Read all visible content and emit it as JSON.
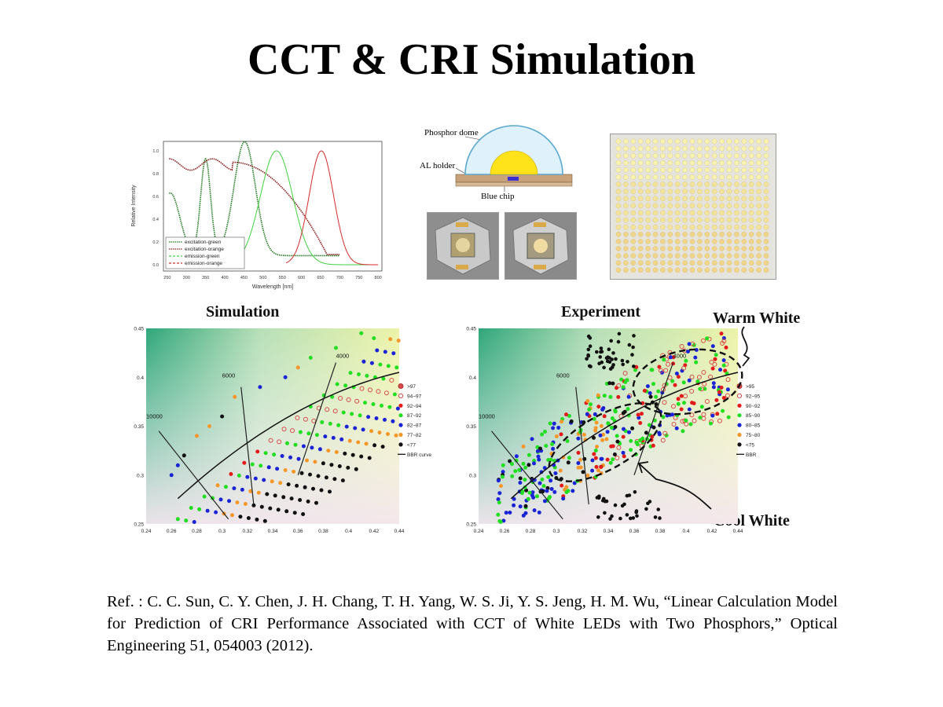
{
  "title": "CCT & CRI Simulation",
  "reference": "Ref. : C. C. Sun, C. Y. Chen, J. H. Chang, T. H. Yang, W. S. Ji, Y. S. Jeng, H. M. Wu, “Linear Calculation Model for Prediction of CRI Performance Associated with CCT of White LEDs with Two Phosphors,” Optical Engineering 51, 054003 (2012).",
  "spectrum": {
    "ylabel": "Relative Intensity",
    "xlabel": "Wavelength [nm]",
    "xticks": [
      "250",
      "300",
      "350",
      "400",
      "450",
      "500",
      "550",
      "600",
      "650",
      "700",
      "750",
      "800"
    ],
    "yticks": [
      "0.0",
      "0.2",
      "0.4",
      "0.6",
      "0.8",
      "1.0"
    ],
    "legend": [
      "excitation-green",
      "excitation-orange",
      "emission-green",
      "emission-orange"
    ],
    "colors": {
      "excitation_green": "#1e7a1e",
      "excitation_orange": "#8b1a1a",
      "emission_green": "#3fd13f",
      "emission_orange": "#d42a2a"
    }
  },
  "diagram": {
    "phosphor_dome": "Phosphor dome",
    "al_holder": "AL holder",
    "blue_chip": "Blue chip"
  },
  "simulation": {
    "heading": "Simulation",
    "cct_labels": [
      "4000",
      "6000",
      "10000"
    ],
    "legend": [
      ">97",
      "94~97",
      "92~94",
      "87~92",
      "82~87",
      "77~82",
      "<77",
      "BBR curve"
    ],
    "xticks": [
      "0.24",
      "0.26",
      "0.28",
      "0.3",
      "0.32",
      "0.34",
      "0.36",
      "0.38",
      "0.4",
      "0.42",
      "0.44"
    ],
    "yticks": [
      "0.45",
      "0.4",
      "0.35",
      "0.3",
      "0.25"
    ]
  },
  "experiment": {
    "heading": "Experiment",
    "cct_labels": [
      "4000",
      "6000",
      "10000"
    ],
    "legend": [
      ">95",
      "92~95",
      "90~92",
      "85~90",
      "80~85",
      "75~80",
      "<75",
      "BBR"
    ],
    "xticks": [
      "0.24",
      "0.26",
      "0.28",
      "0.3",
      "0.32",
      "0.34",
      "0.36",
      "0.38",
      "0.4",
      "0.42",
      "0.44"
    ],
    "yticks": [
      "0.45",
      "0.4",
      "0.35",
      "0.3",
      "0.25"
    ],
    "warm_white": "Warm White",
    "cool_white": "Cool White"
  },
  "colors": {
    "c1": "#d94a4a",
    "c2": "#d94a4a",
    "c3": "#e31b1b",
    "c4": "#22dd22",
    "c5": "#1a24d4",
    "c6": "#f5972a",
    "c7": "#111111"
  }
}
